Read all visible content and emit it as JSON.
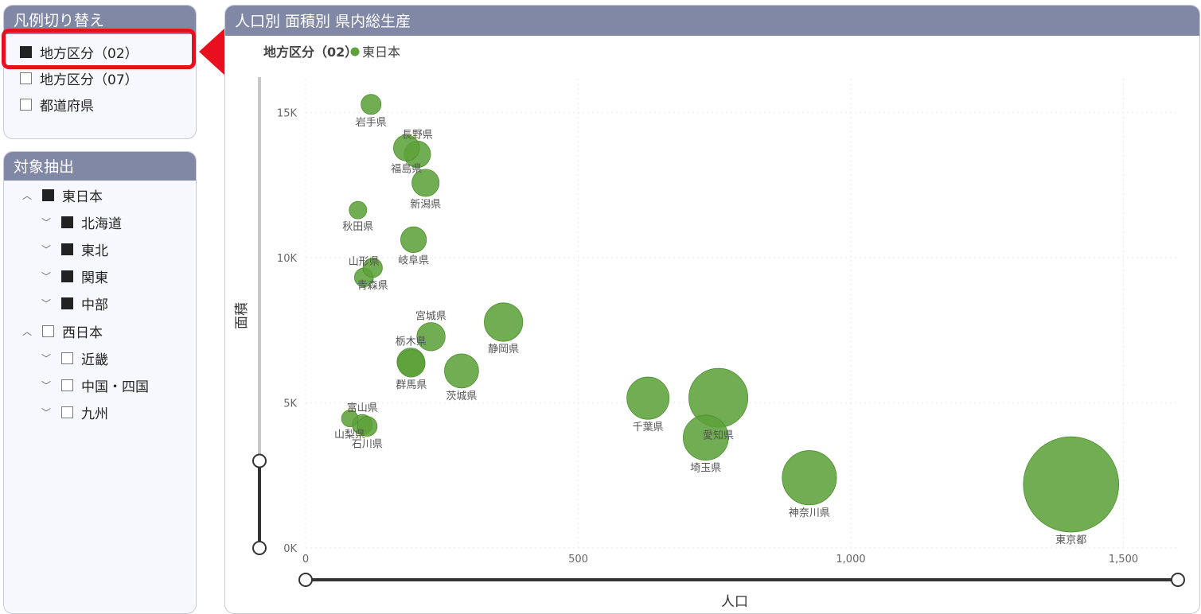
{
  "legend_panel": {
    "title": "凡例切り替え",
    "options": [
      {
        "label": "地方区分（02）",
        "checked": true
      },
      {
        "label": "地方区分（07）",
        "checked": false
      },
      {
        "label": "都道府県",
        "checked": false
      }
    ]
  },
  "filter_panel": {
    "title": "対象抽出",
    "tree": [
      {
        "label": "東日本",
        "level": 0,
        "expand": "^",
        "checked": true
      },
      {
        "label": "北海道",
        "level": 1,
        "expand": "v",
        "checked": true
      },
      {
        "label": "東北",
        "level": 1,
        "expand": "v",
        "checked": true
      },
      {
        "label": "関東",
        "level": 1,
        "expand": "v",
        "checked": true
      },
      {
        "label": "中部",
        "level": 1,
        "expand": "v",
        "checked": true
      },
      {
        "label": "西日本",
        "level": 0,
        "expand": "^",
        "checked": false
      },
      {
        "label": "近畿",
        "level": 1,
        "expand": "v",
        "checked": false
      },
      {
        "label": "中国・四国",
        "level": 1,
        "expand": "v",
        "checked": false
      },
      {
        "label": "九州",
        "level": 1,
        "expand": "v",
        "checked": false
      }
    ]
  },
  "chart_panel": {
    "title": "人口別 面積別 県内総生産"
  },
  "colors": {
    "header": "#8188a6",
    "bubble": "#5da23a",
    "highlight": "#e8101f"
  },
  "chart_data": {
    "type": "scatter",
    "bubble": true,
    "title": "人口別 面積別 県内総生産",
    "legend_title": "地方区分（02）",
    "legend": [
      "東日本"
    ],
    "xlabel": "人口",
    "ylabel": "面積",
    "xlim": [
      0,
      1600
    ],
    "ylim": [
      0,
      16000
    ],
    "x_ticks": [
      0,
      500,
      1000,
      1500
    ],
    "x_tick_labels": [
      "0",
      "500",
      "1,000",
      "1,500"
    ],
    "y_ticks": [
      0,
      5000,
      10000,
      15000
    ],
    "y_tick_labels": [
      "0K",
      "5K",
      "10K",
      "15K"
    ],
    "points": [
      {
        "name": "岩手県",
        "x": 120,
        "y": 15280,
        "size": 4.7,
        "label_pos": "below"
      },
      {
        "name": "長野県",
        "x": 205,
        "y": 13560,
        "size": 8.2,
        "label_pos": "above"
      },
      {
        "name": "福島県",
        "x": 185,
        "y": 13780,
        "size": 7.9,
        "label_pos": "below"
      },
      {
        "name": "新潟県",
        "x": 220,
        "y": 12580,
        "size": 8.7,
        "label_pos": "below"
      },
      {
        "name": "秋田県",
        "x": 96,
        "y": 11640,
        "size": 3.6,
        "label_pos": "below"
      },
      {
        "name": "岐阜県",
        "x": 198,
        "y": 10620,
        "size": 7.8,
        "label_pos": "below"
      },
      {
        "name": "山形県",
        "x": 107,
        "y": 9320,
        "size": 4.2,
        "label_pos": "above"
      },
      {
        "name": "青森県",
        "x": 123,
        "y": 9650,
        "size": 4.4,
        "label_pos": "below"
      },
      {
        "name": "静岡県",
        "x": 363,
        "y": 7780,
        "size": 17.4,
        "label_pos": "below"
      },
      {
        "name": "栃木県",
        "x": 193,
        "y": 6410,
        "size": 9.0,
        "label_pos": "above"
      },
      {
        "name": "宮城県",
        "x": 230,
        "y": 7280,
        "size": 9.4,
        "label_pos": "above"
      },
      {
        "name": "群馬県",
        "x": 194,
        "y": 6360,
        "size": 8.8,
        "label_pos": "below"
      },
      {
        "name": "茨城県",
        "x": 286,
        "y": 6100,
        "size": 13.7,
        "label_pos": "below"
      },
      {
        "name": "富山県",
        "x": 104,
        "y": 4250,
        "size": 4.8,
        "label_pos": "above"
      },
      {
        "name": "山梨県",
        "x": 81,
        "y": 4460,
        "size": 3.2,
        "label_pos": "below"
      },
      {
        "name": "石川県",
        "x": 113,
        "y": 4190,
        "size": 4.6,
        "label_pos": "below"
      },
      {
        "name": "千葉県",
        "x": 628,
        "y": 5160,
        "size": 21.0,
        "label_pos": "below"
      },
      {
        "name": "愛知県",
        "x": 757,
        "y": 5170,
        "size": 40.9,
        "label_pos": "below"
      },
      {
        "name": "埼玉県",
        "x": 734,
        "y": 3800,
        "size": 23.9,
        "label_pos": "below"
      },
      {
        "name": "神奈川県",
        "x": 924,
        "y": 2420,
        "size": 34.6,
        "label_pos": "below"
      },
      {
        "name": "東京都",
        "x": 1404,
        "y": 2190,
        "size": 106.6,
        "label_pos": "below"
      }
    ],
    "y_slider": {
      "from": 0,
      "to": 3000
    },
    "x_slider": {
      "from": 0,
      "to": 1600
    }
  }
}
